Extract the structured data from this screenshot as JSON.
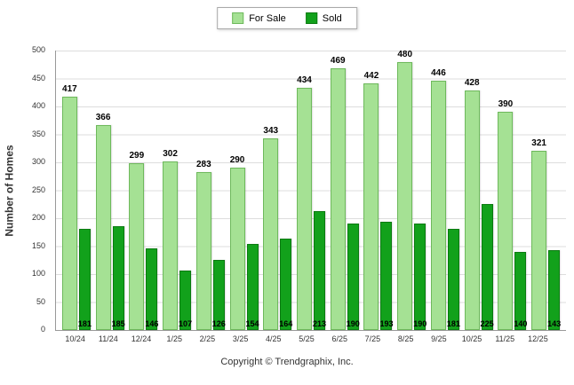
{
  "legend": {
    "items": [
      {
        "label": "For Sale"
      },
      {
        "label": "Sold"
      }
    ]
  },
  "footer": {
    "copyright": "Copyright © Trendgraphix, Inc."
  },
  "chart_data": {
    "type": "bar",
    "title": "",
    "xlabel": "",
    "ylabel": "Number of Homes",
    "ylim": [
      0,
      500
    ],
    "ytick_step": 50,
    "grid": true,
    "legend_position": "top-center",
    "categories": [
      "10/24",
      "11/24",
      "12/24",
      "1/25",
      "2/25",
      "3/25",
      "4/25",
      "5/25",
      "6/25",
      "7/25",
      "8/25",
      "9/25",
      "10/25",
      "11/25",
      "12/25"
    ],
    "series": [
      {
        "name": "For Sale",
        "color": "#a5e194",
        "border": "#6eb95c",
        "values": [
          417,
          366,
          299,
          302,
          283,
          290,
          343,
          434,
          469,
          442,
          480,
          446,
          428,
          390,
          321
        ]
      },
      {
        "name": "Sold",
        "color": "#12a11b",
        "border": "#0a7a10",
        "values": [
          181,
          185,
          146,
          107,
          126,
          154,
          164,
          213,
          190,
          193,
          190,
          181,
          225,
          140,
          143
        ]
      }
    ]
  }
}
